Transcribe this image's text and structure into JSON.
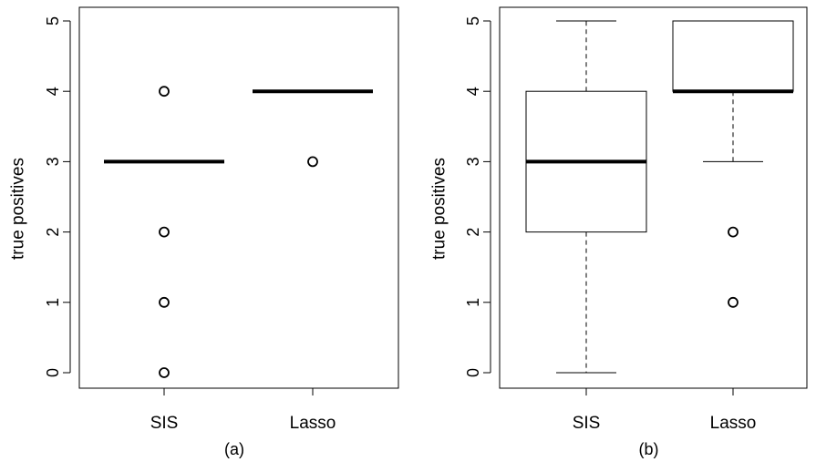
{
  "chart_data": [
    {
      "type": "boxplot",
      "panel_label": "(a)",
      "ylabel": "true positives",
      "ylim": [
        0,
        5
      ],
      "yticks": [
        0,
        1,
        2,
        3,
        4,
        5
      ],
      "categories": [
        "SIS",
        "Lasso"
      ],
      "boxes": [
        {
          "name": "SIS",
          "min": 3,
          "q1": 3,
          "median": 3,
          "q3": 3,
          "max": 3,
          "outliers": [
            0,
            1,
            2,
            4
          ]
        },
        {
          "name": "Lasso",
          "min": 4,
          "q1": 4,
          "median": 4,
          "q3": 4,
          "max": 4,
          "outliers": [
            3
          ]
        }
      ]
    },
    {
      "type": "boxplot",
      "panel_label": "(b)",
      "ylabel": "true positives",
      "ylim": [
        0,
        5
      ],
      "yticks": [
        0,
        1,
        2,
        3,
        4,
        5
      ],
      "categories": [
        "SIS",
        "Lasso"
      ],
      "boxes": [
        {
          "name": "SIS",
          "min": 0,
          "q1": 2,
          "median": 3,
          "q3": 4,
          "max": 5,
          "outliers": []
        },
        {
          "name": "Lasso",
          "min": 3,
          "q1": 4,
          "median": 4,
          "q3": 5,
          "max": 5,
          "outliers": [
            1,
            2
          ]
        }
      ]
    }
  ]
}
